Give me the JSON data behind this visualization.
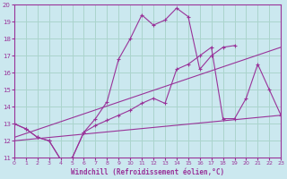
{
  "xlabel": "Windchill (Refroidissement éolien,°C)",
  "background_color": "#cbe8ef",
  "grid_color": "#aad4cc",
  "line_color": "#993399",
  "xlim": [
    0,
    23
  ],
  "ylim": [
    11,
    20
  ],
  "xticks": [
    0,
    1,
    2,
    3,
    4,
    5,
    6,
    7,
    8,
    9,
    10,
    11,
    12,
    13,
    14,
    15,
    16,
    17,
    18,
    19,
    20,
    21,
    22,
    23
  ],
  "yticks": [
    11,
    12,
    13,
    14,
    15,
    16,
    17,
    18,
    19,
    20
  ],
  "series": [
    {
      "x": [
        0,
        1,
        2,
        3,
        4,
        5,
        6,
        7,
        8,
        9,
        10,
        11,
        12,
        13,
        14,
        15,
        16,
        17,
        18,
        19
      ],
      "y": [
        13.0,
        12.7,
        12.2,
        12.0,
        10.9,
        11.0,
        12.5,
        13.3,
        14.3,
        16.8,
        18.0,
        19.4,
        18.8,
        19.1,
        19.8,
        19.3,
        16.2,
        17.0,
        17.5,
        17.6
      ]
    },
    {
      "x": [
        0,
        1,
        2,
        3,
        4,
        5,
        6,
        7,
        8,
        9,
        10,
        11,
        12,
        13,
        14,
        15,
        16,
        17,
        18,
        19,
        20,
        21,
        22,
        23
      ],
      "y": [
        13.0,
        12.7,
        12.2,
        12.0,
        10.9,
        11.0,
        12.5,
        12.9,
        13.2,
        13.5,
        13.8,
        14.2,
        14.5,
        14.2,
        16.2,
        16.5,
        17.0,
        17.5,
        13.3,
        13.3,
        14.5,
        16.5,
        15.0,
        13.5
      ]
    },
    {
      "x": [
        0,
        23
      ],
      "y": [
        12.2,
        17.5
      ]
    },
    {
      "x": [
        0,
        23
      ],
      "y": [
        12.0,
        13.5
      ]
    }
  ]
}
